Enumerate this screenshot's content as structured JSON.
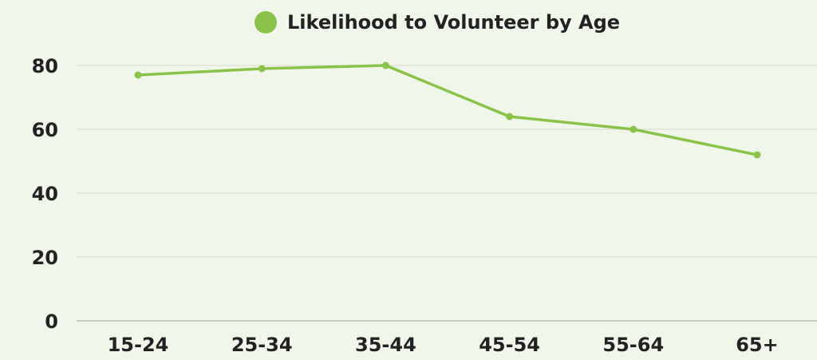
{
  "chart_data": {
    "type": "line",
    "title": "",
    "xlabel": "",
    "ylabel": "",
    "categories": [
      "15-24",
      "25-34",
      "35-44",
      "45-54",
      "55-64",
      "65+"
    ],
    "series": [
      {
        "name": "Likelihood to Volunteer by Age",
        "values": [
          77,
          79,
          80,
          64,
          60,
          52
        ]
      }
    ],
    "ylim": [
      0,
      80
    ],
    "yticks": [
      0,
      20,
      40,
      60,
      80
    ],
    "grid": "horizontal",
    "legend": "top-center",
    "colors": {
      "series": "#8bc34a",
      "grid": "#d6dccd",
      "axis": "#b9bfb2",
      "background": "#f1f6ea",
      "text": "#222222"
    }
  }
}
